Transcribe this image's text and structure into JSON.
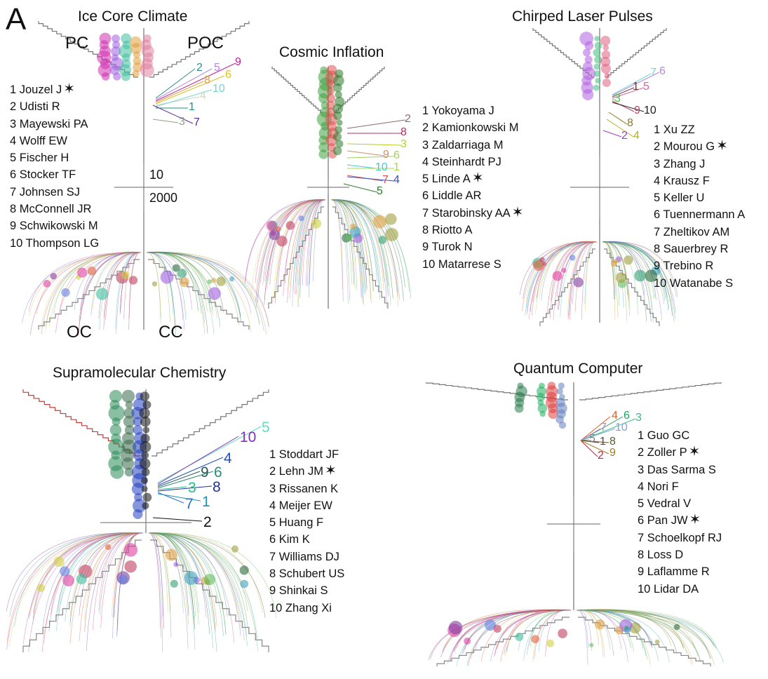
{
  "panel_letter": "A",
  "star_glyph": "✶",
  "panels": [
    {
      "id": "ice",
      "title": "Ice Core Climate",
      "quadrants": [
        "PC",
        "POC",
        "OC",
        "CC"
      ],
      "scale_top": "10",
      "scale_bottom": "2000",
      "authors": [
        {
          "label": "1 Jouzel J",
          "star": true
        },
        {
          "label": "2 Udisti R",
          "star": false
        },
        {
          "label": "3 Mayewski PA",
          "star": false
        },
        {
          "label": "4 Wolff EW",
          "star": false
        },
        {
          "label": "5 Fischer H",
          "star": false
        },
        {
          "label": "6 Stocker TF",
          "star": false
        },
        {
          "label": "7 Johnsen SJ",
          "star": false
        },
        {
          "label": "8 McConnell JR",
          "star": false
        },
        {
          "label": "9 Schwikowski M",
          "star": false
        },
        {
          "label": "10 Thompson LG",
          "star": false
        }
      ],
      "callouts": [
        {
          "text": "2",
          "color": "#2f8f8f"
        },
        {
          "text": "5",
          "color": "#b48be6"
        },
        {
          "text": "9",
          "color": "#c020a0"
        },
        {
          "text": "8",
          "color": "#e0a040"
        },
        {
          "text": "6",
          "color": "#d8c020"
        },
        {
          "text": "4",
          "color": "#d8d0c0"
        },
        {
          "text": "10",
          "color": "#70d8d0"
        },
        {
          "text": "1",
          "color": "#1a9a80"
        },
        {
          "text": "3",
          "color": "#90a090"
        },
        {
          "text": "7",
          "color": "#5a2a9a"
        }
      ]
    },
    {
      "id": "cosmic",
      "title": "Cosmic Inflation",
      "authors": [
        {
          "label": "1 Yokoyama J",
          "star": false
        },
        {
          "label": "2 Kamionkowski M",
          "star": false
        },
        {
          "label": "3 Zaldarriaga M",
          "star": false
        },
        {
          "label": "4 Steinhardt PJ",
          "star": false
        },
        {
          "label": "5 Linde A",
          "star": true
        },
        {
          "label": "6 Liddle AR",
          "star": false
        },
        {
          "label": "7 Starobinsky AA",
          "star": true
        },
        {
          "label": "8 Riotto A",
          "star": false
        },
        {
          "label": "9 Turok N",
          "star": false
        },
        {
          "label": "10 Matarrese S",
          "star": false
        }
      ],
      "callouts": [
        {
          "text": "2",
          "color": "#8a6a6a"
        },
        {
          "text": "8",
          "color": "#b03060"
        },
        {
          "text": "3",
          "color": "#b8d020"
        },
        {
          "text": "9",
          "color": "#d09060"
        },
        {
          "text": "6",
          "color": "#a0d060"
        },
        {
          "text": "10",
          "color": "#40c8e0"
        },
        {
          "text": "1",
          "color": "#a0e040"
        },
        {
          "text": "7",
          "color": "#e05050"
        },
        {
          "text": "4",
          "color": "#3050c0"
        },
        {
          "text": "5",
          "color": "#2a7a2a"
        }
      ]
    },
    {
      "id": "chirped",
      "title": "Chirped Laser Pulses",
      "authors": [
        {
          "label": "1 Xu ZZ",
          "star": false
        },
        {
          "label": "2 Mourou G",
          "star": true
        },
        {
          "label": "3 Zhang J",
          "star": false
        },
        {
          "label": "4 Krausz F",
          "star": false
        },
        {
          "label": "5 Keller U",
          "star": false
        },
        {
          "label": "6 Tuennermann A",
          "star": false
        },
        {
          "label": "7 Zheltikov AM",
          "star": false
        },
        {
          "label": "8 Sauerbrey R",
          "star": false
        },
        {
          "label": "9 Trebino R",
          "star": false
        },
        {
          "label": "10 Watanabe S",
          "star": false
        }
      ],
      "callouts": [
        {
          "text": "7",
          "color": "#70d8d0"
        },
        {
          "text": "6",
          "color": "#c080e0"
        },
        {
          "text": "1",
          "color": "#6a3a3a"
        },
        {
          "text": "5",
          "color": "#e060a0"
        },
        {
          "text": "3",
          "color": "#40c040"
        },
        {
          "text": "9",
          "color": "#c04060"
        },
        {
          "text": "10",
          "color": "#222222"
        },
        {
          "text": "8",
          "color": "#8a7a2a"
        },
        {
          "text": "2",
          "color": "#a040c0"
        },
        {
          "text": "4",
          "color": "#b8b020"
        }
      ]
    },
    {
      "id": "supra",
      "title": "Supramolecular Chemistry",
      "authors": [
        {
          "label": "1 Stoddart JF",
          "star": false
        },
        {
          "label": "2 Lehn JM",
          "star": true
        },
        {
          "label": "3 Rissanen K",
          "star": false
        },
        {
          "label": "4 Meijer EW",
          "star": false
        },
        {
          "label": "5 Huang F",
          "star": false
        },
        {
          "label": "6 Kim K",
          "star": false
        },
        {
          "label": "7 Williams DJ",
          "star": false
        },
        {
          "label": "8 Schubert US",
          "star": false
        },
        {
          "label": "9 Shinkai S",
          "star": false
        },
        {
          "label": "10 Zhang Xi",
          "star": false
        }
      ],
      "callouts": [
        {
          "text": "5",
          "color": "#60e0c0"
        },
        {
          "text": "10",
          "color": "#8030c0"
        },
        {
          "text": "4",
          "color": "#2050d0"
        },
        {
          "text": "9",
          "color": "#2a5a5a"
        },
        {
          "text": "6",
          "color": "#2a8a7a"
        },
        {
          "text": "3",
          "color": "#20c080"
        },
        {
          "text": "8",
          "color": "#2030a0"
        },
        {
          "text": "7",
          "color": "#2070d0"
        },
        {
          "text": "1",
          "color": "#2090c0"
        },
        {
          "text": "2",
          "color": "#111111"
        }
      ]
    },
    {
      "id": "quantum",
      "title": "Quantum Computer",
      "authors": [
        {
          "label": "1 Guo GC",
          "star": false
        },
        {
          "label": "2 Zoller P",
          "star": true
        },
        {
          "label": "3 Das Sarma S",
          "star": false
        },
        {
          "label": "4 Nori F",
          "star": false
        },
        {
          "label": "5 Vedral V",
          "star": false
        },
        {
          "label": "6 Pan JW",
          "star": true
        },
        {
          "label": "7 Schoelkopf RJ",
          "star": false
        },
        {
          "label": "8 Loss D",
          "star": false
        },
        {
          "label": "9 Laflamme R",
          "star": false
        },
        {
          "label": "10 Lidar DA",
          "star": false
        }
      ],
      "callouts": [
        {
          "text": "4",
          "color": "#e06020"
        },
        {
          "text": "6",
          "color": "#20a060"
        },
        {
          "text": "3",
          "color": "#30c080"
        },
        {
          "text": "7",
          "color": "#c080e0"
        },
        {
          "text": "10",
          "color": "#80a0e0"
        },
        {
          "text": "5",
          "color": "#808080"
        },
        {
          "text": "1",
          "color": "#6a3a3a"
        },
        {
          "text": "8",
          "color": "#5a5a2a"
        },
        {
          "text": "2",
          "color": "#d02040"
        },
        {
          "text": "9",
          "color": "#a08020"
        }
      ]
    }
  ]
}
